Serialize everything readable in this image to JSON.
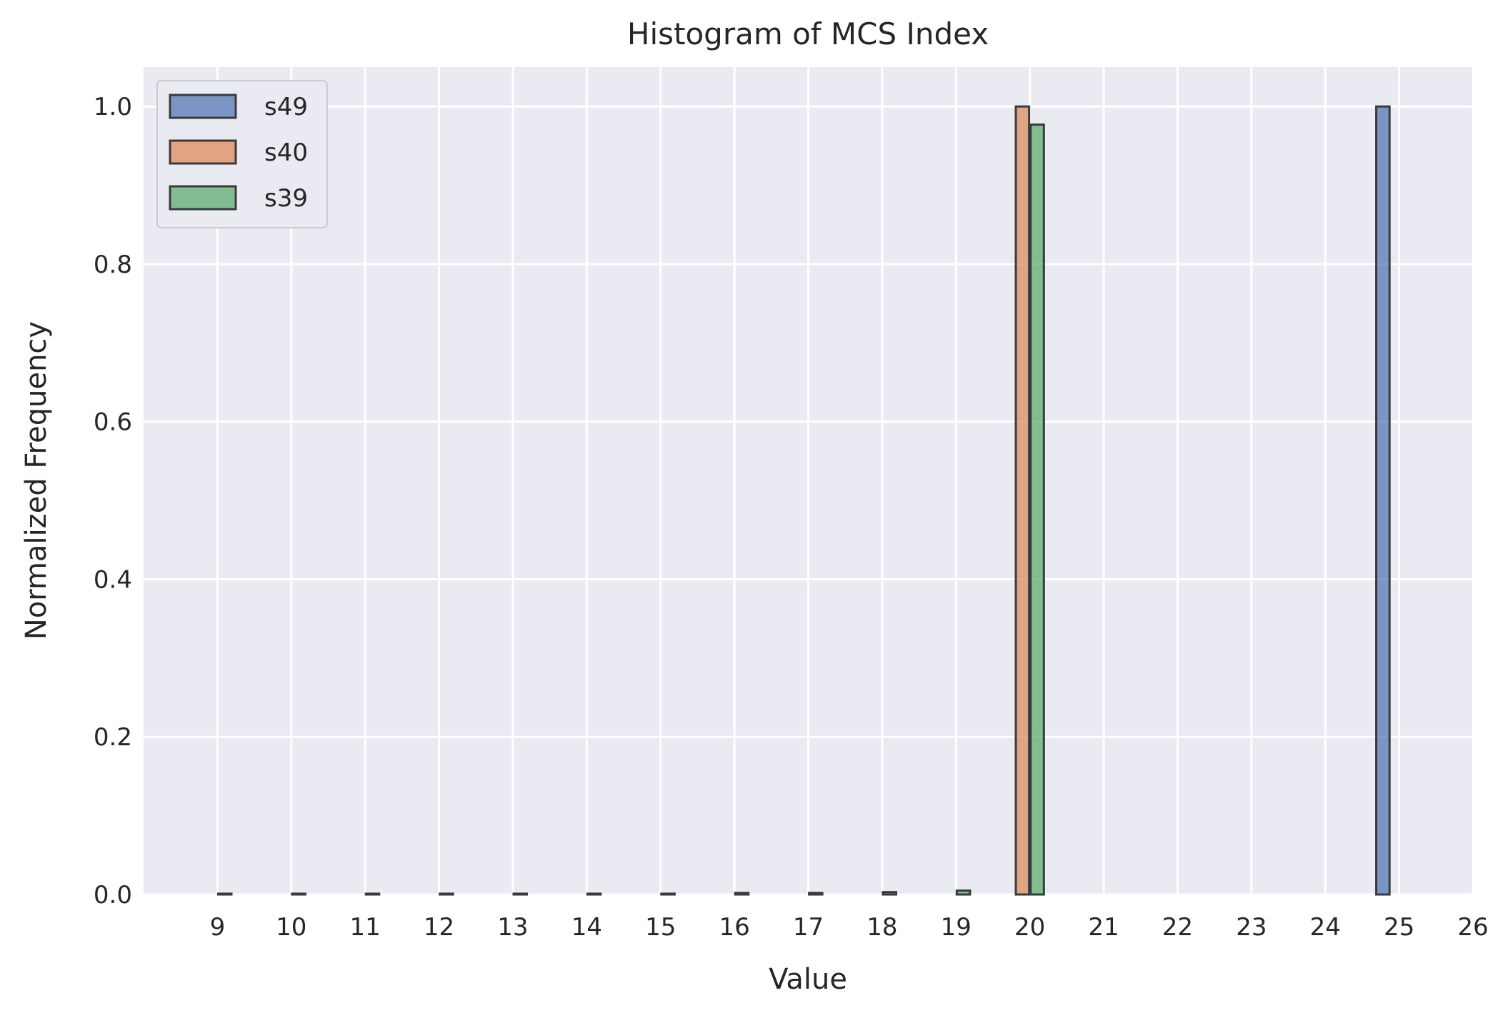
{
  "chart_data": {
    "type": "bar",
    "title": "Histogram of MCS Index",
    "xlabel": "Value",
    "ylabel": "Normalized Frequency",
    "categories": [
      "9",
      "10",
      "11",
      "12",
      "13",
      "14",
      "15",
      "16",
      "17",
      "18",
      "19",
      "20",
      "21",
      "22",
      "23",
      "24",
      "25",
      "26"
    ],
    "xlim": [
      8,
      26
    ],
    "ylim": [
      0,
      1.05
    ],
    "yticks": [
      "0.0",
      "0.2",
      "0.4",
      "0.6",
      "0.8",
      "1.0"
    ],
    "grid": true,
    "legend_position": "top-left",
    "series": [
      {
        "name": "s49",
        "color": "#4c72b0",
        "values": [
          0,
          0,
          0,
          0,
          0,
          0,
          0,
          0,
          0,
          0,
          0,
          0,
          0,
          0,
          0,
          0,
          1.0,
          0
        ]
      },
      {
        "name": "s40",
        "color": "#dd8452",
        "values": [
          0,
          0,
          0,
          0,
          0,
          0,
          0,
          0,
          0,
          0,
          0,
          1.0,
          0,
          0,
          0,
          0,
          0,
          0
        ]
      },
      {
        "name": "s39",
        "color": "#55a868",
        "values": [
          0.001,
          0.001,
          0.001,
          0.001,
          0.001,
          0.001,
          0.001,
          0.002,
          0.002,
          0.003,
          0.005,
          0.977,
          0,
          0,
          0,
          0,
          0,
          0
        ]
      }
    ]
  }
}
